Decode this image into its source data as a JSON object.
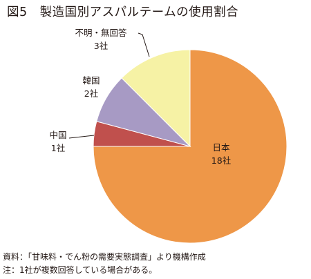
{
  "title": {
    "figure_number": "図5",
    "text": "製造国別アスパルテームの使用割合"
  },
  "chart_data": {
    "type": "pie",
    "unit": "社",
    "slices": [
      {
        "label": "日本",
        "value": 18,
        "value_label": "18社",
        "color": "#EE9748"
      },
      {
        "label": "中国",
        "value": 1,
        "value_label": "1社",
        "color": "#C0504D"
      },
      {
        "label": "韓国",
        "value": 2,
        "value_label": "2社",
        "color": "#A79AC4"
      },
      {
        "label": "不明・無回答",
        "value": 3,
        "value_label": "3社",
        "color": "#F6F2A5"
      }
    ]
  },
  "footer": {
    "source": "資料：「甘味料・でん粉の需要実態調査」より機構作成",
    "note": "注：1社が複数回答している場合がある。"
  }
}
